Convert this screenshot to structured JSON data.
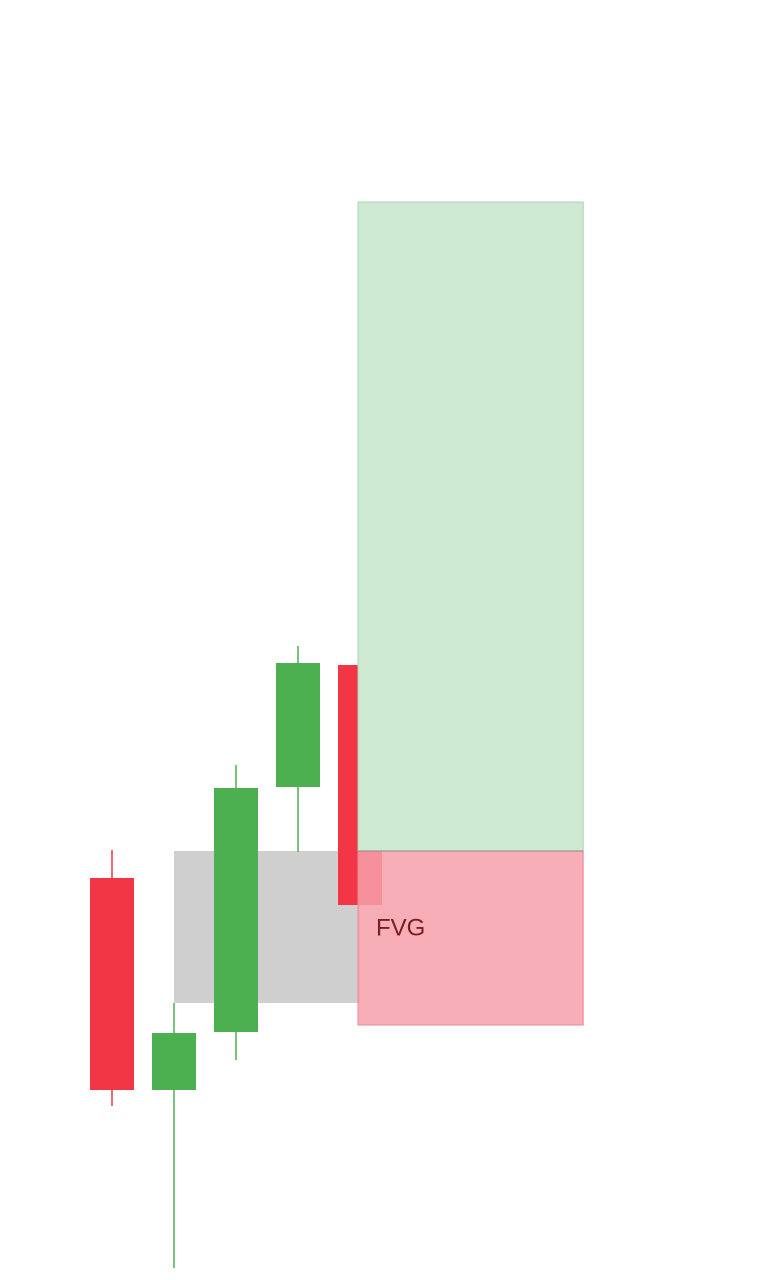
{
  "chart_data": {
    "type": "candlestick",
    "title": "",
    "xlabel": "",
    "ylabel": "",
    "grid": false,
    "legend": "none",
    "ylim": [
      0,
      1280
    ],
    "colors": {
      "bullish": "#4caf50",
      "bearish": "#f23645",
      "fvg_zone": "#bdbdbd",
      "target_zone": "#cde9d2",
      "stop_zone": "#f7a0aa",
      "label": "#7a1e22"
    },
    "candles": [
      {
        "index": 1,
        "open": 402,
        "close": 190,
        "high": 430,
        "low": 174
      },
      {
        "index": 2,
        "open": 190,
        "close": 247,
        "high": 277,
        "low": 12
      },
      {
        "index": 3,
        "open": 248,
        "close": 492,
        "high": 515,
        "low": 220
      },
      {
        "index": 4,
        "open": 493,
        "close": 617,
        "high": 634,
        "low": 428
      },
      {
        "index": 5,
        "open": 615,
        "close": 375,
        "high": 640,
        "low": 375
      }
    ],
    "zones": [
      {
        "kind": "fvg",
        "label": "FVG",
        "from_index": 2,
        "to_index": 5,
        "bottom": 277,
        "top": 429
      },
      {
        "kind": "target",
        "label": "",
        "from_index": 5,
        "to_index": 8.6,
        "bottom": 429,
        "top": 1078
      },
      {
        "kind": "stop",
        "label": "",
        "from_index": 5,
        "to_index": 8.6,
        "bottom": 255,
        "top": 429
      }
    ]
  }
}
